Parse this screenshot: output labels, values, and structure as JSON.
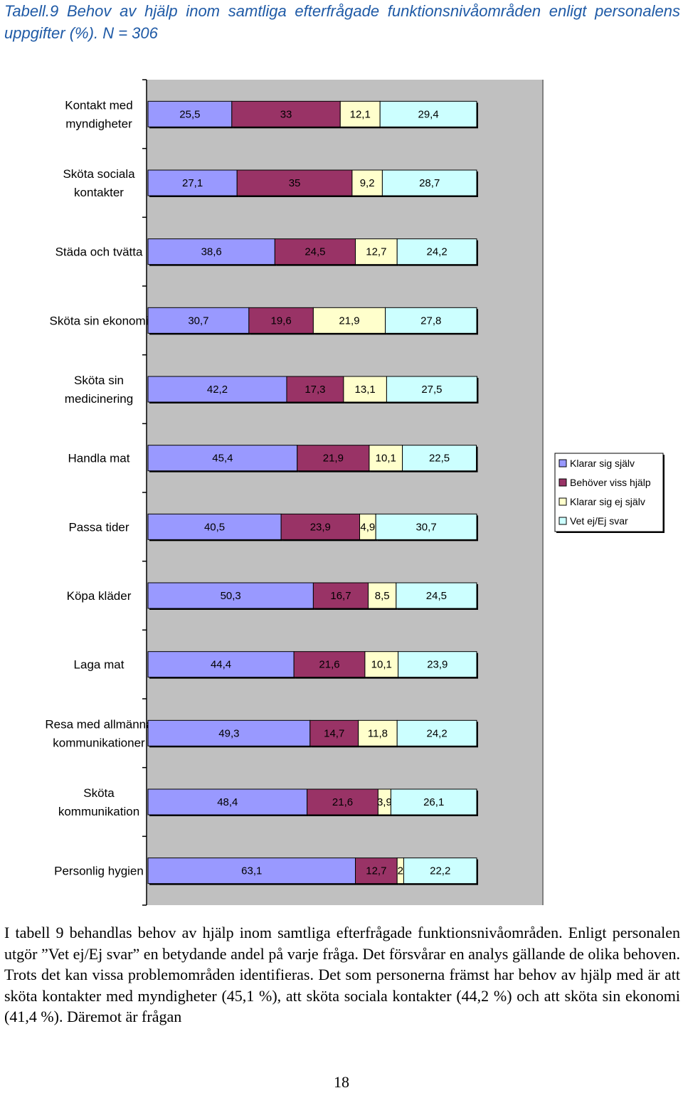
{
  "caption": {
    "title": "Tabell.9 Behov av hjälp inom samtliga efterfrågade funktionsnivåområden enligt personalens uppgifter (%).",
    "n_label": "N = 306"
  },
  "chart_data": {
    "type": "bar",
    "stacked": true,
    "orientation": "horizontal",
    "categories": [
      [
        "Kontakt med",
        "myndigheter"
      ],
      [
        "Sköta sociala",
        "kontakter"
      ],
      [
        "Städa och tvätta"
      ],
      [
        "Sköta sin ekonomi"
      ],
      [
        "Sköta sin",
        "medicinering"
      ],
      [
        "Handla mat"
      ],
      [
        "Passa tider"
      ],
      [
        "Köpa kläder"
      ],
      [
        "Laga mat"
      ],
      [
        "Resa med allmänna",
        "kommunikationer"
      ],
      [
        "Sköta",
        "kommunikation"
      ],
      [
        "Personlig hygien"
      ]
    ],
    "series": [
      {
        "name": "Klarar sig själv",
        "color": "#9999ff",
        "values": [
          25.5,
          27.1,
          38.6,
          30.7,
          42.2,
          45.4,
          40.5,
          50.3,
          44.4,
          49.3,
          48.4,
          63.1
        ],
        "labels": [
          "25,5",
          "27,1",
          "38,6",
          "30,7",
          "42,2",
          "45,4",
          "40,5",
          "50,3",
          "44,4",
          "49,3",
          "48,4",
          "63,1"
        ]
      },
      {
        "name": "Behöver viss hjälp",
        "color": "#993366",
        "values": [
          33,
          35,
          24.5,
          19.6,
          17.3,
          21.9,
          23.9,
          16.7,
          21.6,
          14.7,
          21.6,
          12.7
        ],
        "labels": [
          "33",
          "35",
          "24,5",
          "19,6",
          "17,3",
          "21,9",
          "23,9",
          "16,7",
          "21,6",
          "14,7",
          "21,6",
          "12,7"
        ]
      },
      {
        "name": "Klarar sig ej själv",
        "color": "#ffffcc",
        "values": [
          12.1,
          9.2,
          12.7,
          21.9,
          13.1,
          10.1,
          4.9,
          8.5,
          10.1,
          11.8,
          3.9,
          2
        ],
        "labels": [
          "12,1",
          "9,2",
          "12,7",
          "21,9",
          "13,1",
          "10,1",
          "4,9",
          "8,5",
          "10,1",
          "11,8",
          "3,9",
          "2"
        ]
      },
      {
        "name": "Vet ej/Ej svar",
        "color": "#ccffff",
        "values": [
          29.4,
          28.7,
          24.2,
          27.8,
          27.5,
          22.5,
          30.7,
          24.5,
          23.9,
          24.2,
          26.1,
          22.2
        ],
        "labels": [
          "29,4",
          "28,7",
          "24,2",
          "27,8",
          "27,5",
          "22,5",
          "30,7",
          "24,5",
          "23,9",
          "24,2",
          "26,1",
          "22,2"
        ]
      }
    ],
    "xlim": [
      0,
      100
    ],
    "legend_position": "right"
  },
  "body_text": "I tabell 9 behandlas behov av hjälp inom samtliga efterfrågade funktionsnivåområden. Enligt personalen utgör ”Vet ej/Ej svar” en betydande andel på varje fråga. Det försvårar en analys gällande de olika behoven. Trots det kan vissa problemområden identifieras. Det som personerna främst har behov av hjälp med är att sköta kontakter med myndigheter (45,1 %), att sköta sociala kontakter (44,2 %) och att sköta sin ekonomi (41,4 %). Däremot är frågan",
  "page_number": "18"
}
